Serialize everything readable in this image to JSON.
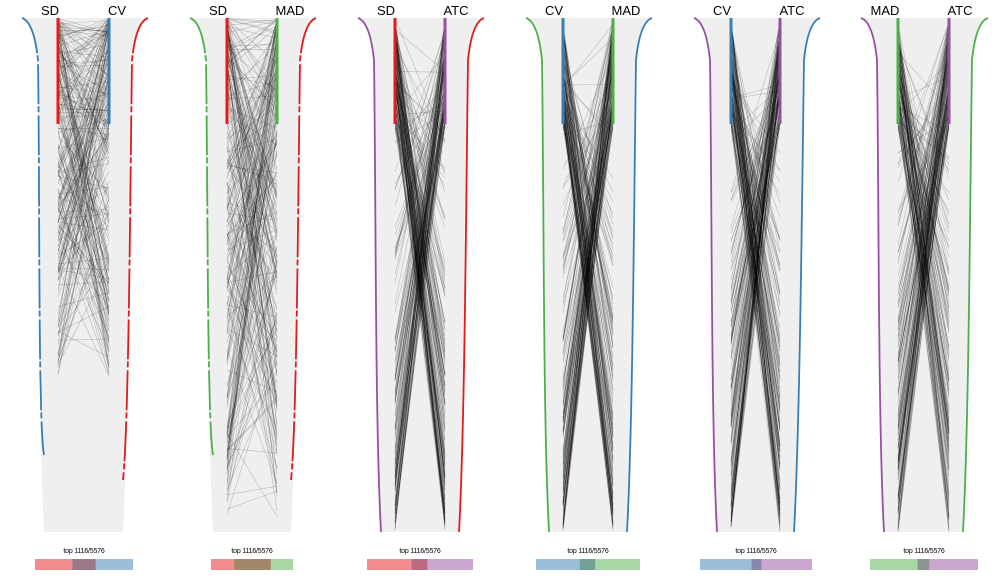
{
  "figure": {
    "title": "",
    "total_items": 5576,
    "top_n": 1116,
    "top_label": "top 1116/5576"
  },
  "colors": {
    "SD": "#e41a1c",
    "CV": "#377eb8",
    "MAD": "#4daf4a",
    "ATC": "#984ea3",
    "funnel": "#efefef",
    "lines": "#000000"
  },
  "chart_data": [
    {
      "type": "rank-correspondence",
      "left_method": "SD",
      "right_method": "CV",
      "top_label": "top 1116/5576",
      "overlap_bar": {
        "left_only_frac": 0.38,
        "shared_frac": 0.24,
        "right_only_frac": 0.38
      },
      "left_curve_color_method": "CV",
      "right_curve_color_method": "SD"
    },
    {
      "type": "rank-correspondence",
      "left_method": "SD",
      "right_method": "MAD",
      "top_label": "top 1116/5576",
      "overlap_bar": {
        "left_only_frac": 0.28,
        "shared_frac": 0.45,
        "right_only_frac": 0.27
      },
      "left_curve_color_method": "MAD",
      "right_curve_color_method": "SD"
    },
    {
      "type": "rank-correspondence",
      "left_method": "SD",
      "right_method": "ATC",
      "top_label": "top 1116/5576",
      "overlap_bar": {
        "left_only_frac": 0.42,
        "shared_frac": 0.15,
        "right_only_frac": 0.43
      },
      "left_curve_color_method": "ATC",
      "right_curve_color_method": "SD"
    },
    {
      "type": "rank-correspondence",
      "left_method": "CV",
      "right_method": "MAD",
      "top_label": "top 1116/5576",
      "overlap_bar": {
        "left_only_frac": 0.42,
        "shared_frac": 0.15,
        "right_only_frac": 0.43
      },
      "left_curve_color_method": "MAD",
      "right_curve_color_method": "CV"
    },
    {
      "type": "rank-correspondence",
      "left_method": "CV",
      "right_method": "ATC",
      "top_label": "top 1116/5576",
      "overlap_bar": {
        "left_only_frac": 0.46,
        "shared_frac": 0.09,
        "right_only_frac": 0.45
      },
      "left_curve_color_method": "ATC",
      "right_curve_color_method": "CV"
    },
    {
      "type": "rank-correspondence",
      "left_method": "MAD",
      "right_method": "ATC",
      "top_label": "top 1116/5576",
      "overlap_bar": {
        "left_only_frac": 0.44,
        "shared_frac": 0.11,
        "right_only_frac": 0.45
      },
      "left_curve_color_method": "ATC",
      "right_curve_color_method": "MAD"
    }
  ],
  "panels": [
    {
      "left": "SD",
      "right": "CV",
      "top": "top 1116/5576"
    },
    {
      "left": "SD",
      "right": "MAD",
      "top": "top 1116/5576"
    },
    {
      "left": "SD",
      "right": "ATC",
      "top": "top 1116/5576"
    },
    {
      "left": "CV",
      "right": "MAD",
      "top": "top 1116/5576"
    },
    {
      "left": "CV",
      "right": "ATC",
      "top": "top 1116/5576"
    },
    {
      "left": "MAD",
      "right": "ATC",
      "top": "top 1116/5576"
    }
  ]
}
